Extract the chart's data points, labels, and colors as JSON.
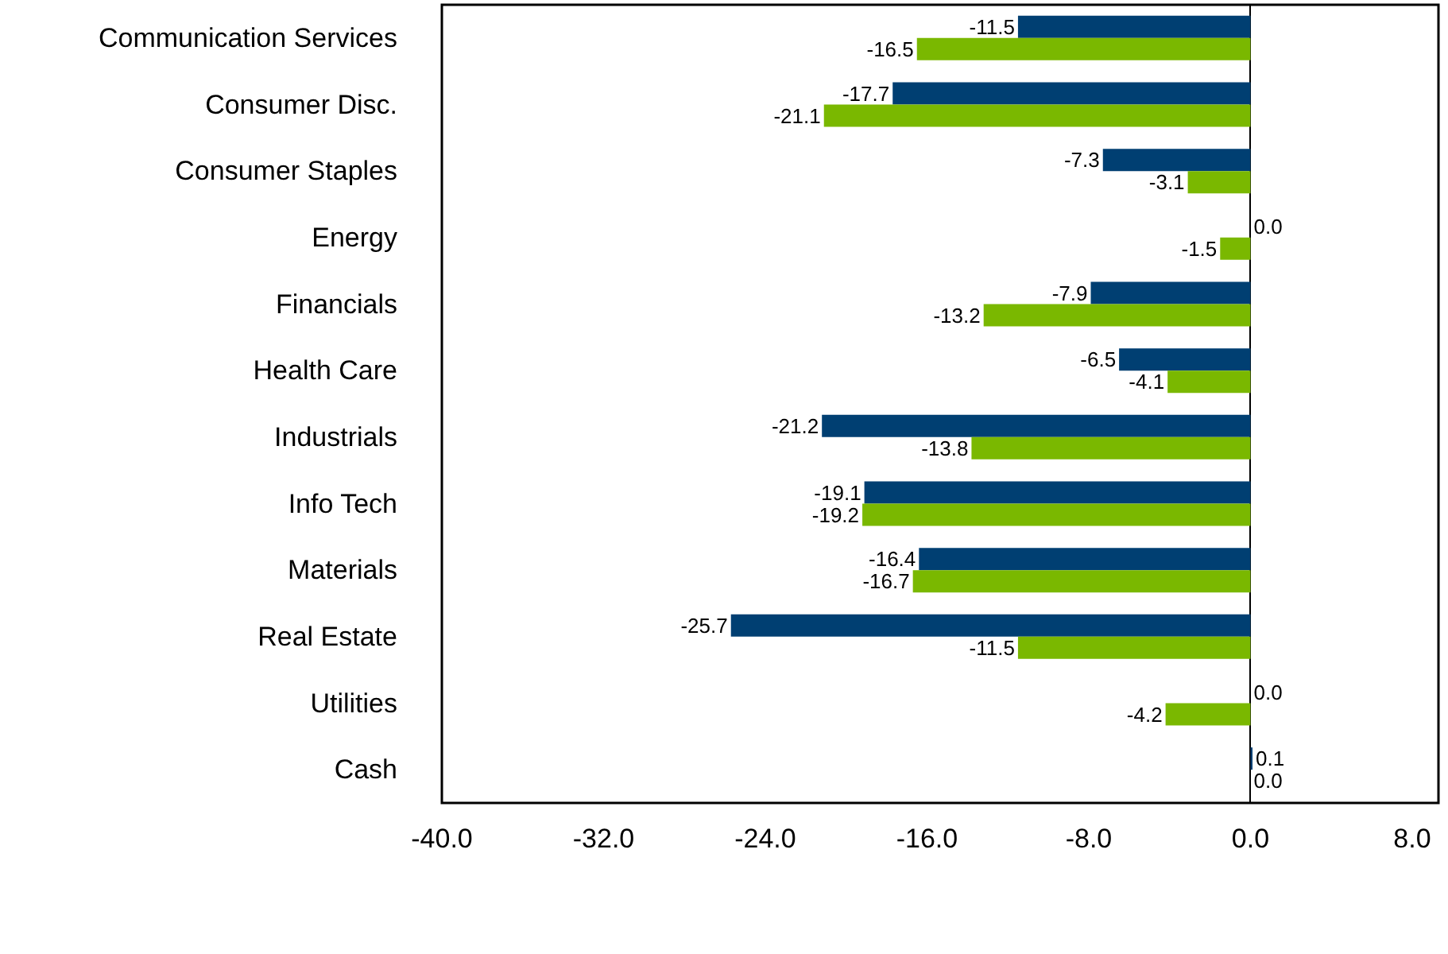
{
  "chart_data": {
    "type": "bar",
    "orientation": "horizontal",
    "categories": [
      "Communication Services",
      "Consumer Disc.",
      "Consumer Staples",
      "Energy",
      "Financials",
      "Health Care",
      "Industrials",
      "Info Tech",
      "Materials",
      "Real Estate",
      "Utilities",
      "Cash"
    ],
    "series": [
      {
        "color": "#003f72",
        "values": [
          -11.5,
          -17.7,
          -7.3,
          0.0,
          -7.9,
          -6.5,
          -21.2,
          -19.1,
          -16.4,
          -25.7,
          0.0,
          0.1
        ],
        "value_labels": [
          "-11.5",
          "-17.7",
          "-7.3",
          "0.0",
          "-7.9",
          "-6.5",
          "-21.2",
          "-19.1",
          "-16.4",
          "-25.7",
          "0.0",
          "0.1"
        ]
      },
      {
        "color": "#7ab800",
        "values": [
          -16.5,
          -21.1,
          -3.1,
          -1.5,
          -13.2,
          -4.1,
          -13.8,
          -19.2,
          -16.7,
          -11.5,
          -4.2,
          0.0
        ],
        "value_labels": [
          "-16.5",
          "-21.1",
          "-3.1",
          "-1.5",
          "-13.2",
          "-4.1",
          "-13.8",
          "-19.2",
          "-16.7",
          "-11.5",
          "-4.2",
          "0.0"
        ]
      }
    ],
    "xlim": [
      -40,
      9.3
    ],
    "xticks": [
      {
        "value": -40,
        "label": "-40.0"
      },
      {
        "value": -32,
        "label": "-32.0"
      },
      {
        "value": -24,
        "label": "-24.0"
      },
      {
        "value": -16,
        "label": "-16.0"
      },
      {
        "value": -8,
        "label": "-8.0"
      },
      {
        "value": 0,
        "label": "0.0"
      },
      {
        "value": 8,
        "label": "8.0"
      }
    ],
    "tick_labels": true
  }
}
